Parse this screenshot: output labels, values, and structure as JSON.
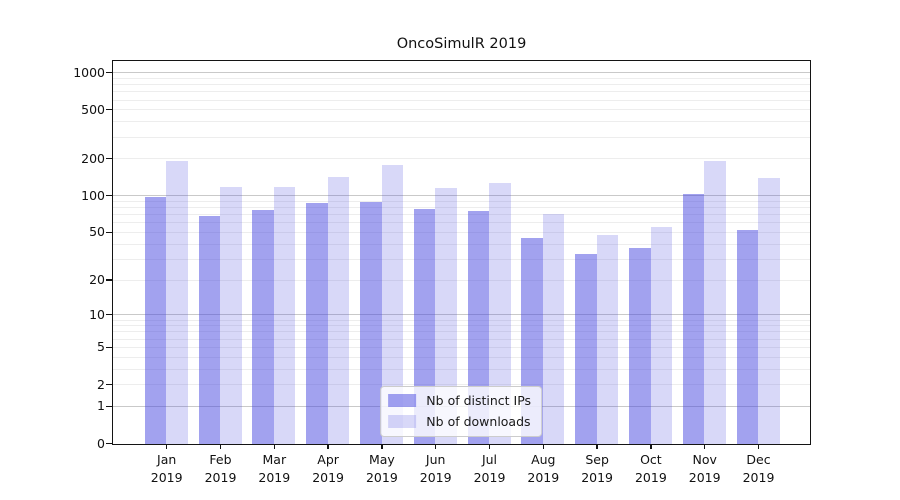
{
  "title": "OncoSimulR 2019",
  "chart_data": {
    "type": "bar",
    "title": "OncoSimulR 2019",
    "xlabel": "",
    "ylabel": "",
    "yscale": "log1p",
    "ylim": [
      0,
      1250
    ],
    "grid": true,
    "legend_position": "lower center",
    "year_line": "2019",
    "categories": [
      "Jan",
      "Feb",
      "Mar",
      "Apr",
      "May",
      "Jun",
      "Jul",
      "Aug",
      "Sep",
      "Oct",
      "Nov",
      "Dec"
    ],
    "series": [
      {
        "name": "Nb of distinct IPs",
        "color": "rgba(70,70,224,0.5)",
        "values": [
          96,
          68,
          76,
          86,
          88,
          78,
          75,
          45,
          33,
          37,
          103,
          52
        ]
      },
      {
        "name": "Nb of downloads",
        "color": "rgba(70,70,224,0.21)",
        "values": [
          190,
          118,
          118,
          140,
          177,
          115,
          126,
          70,
          47,
          55,
          192,
          138
        ]
      }
    ],
    "ytick_labels": [
      "0",
      "1",
      "2",
      "5",
      "10",
      "20",
      "50",
      "100",
      "200",
      "500",
      "1000"
    ],
    "ytick_values": [
      0,
      1,
      2,
      5,
      10,
      20,
      50,
      100,
      200,
      500,
      1000
    ],
    "major_grid_values": [
      1,
      10,
      100,
      1000
    ],
    "minor_grid_values": [
      2,
      3,
      4,
      5,
      6,
      7,
      8,
      9,
      20,
      30,
      40,
      50,
      60,
      70,
      80,
      90,
      200,
      300,
      400,
      500,
      600,
      700,
      800,
      900
    ]
  },
  "colors": {
    "bar_base": "#4646e0",
    "series_ips_rendered": "#a2a2ef",
    "series_downloads_rendered": "#d8d8f8",
    "major_grid": "#c9c9c9",
    "minor_grid": "#ededed",
    "spine": "#141414",
    "legend_border": "#cccccc"
  }
}
